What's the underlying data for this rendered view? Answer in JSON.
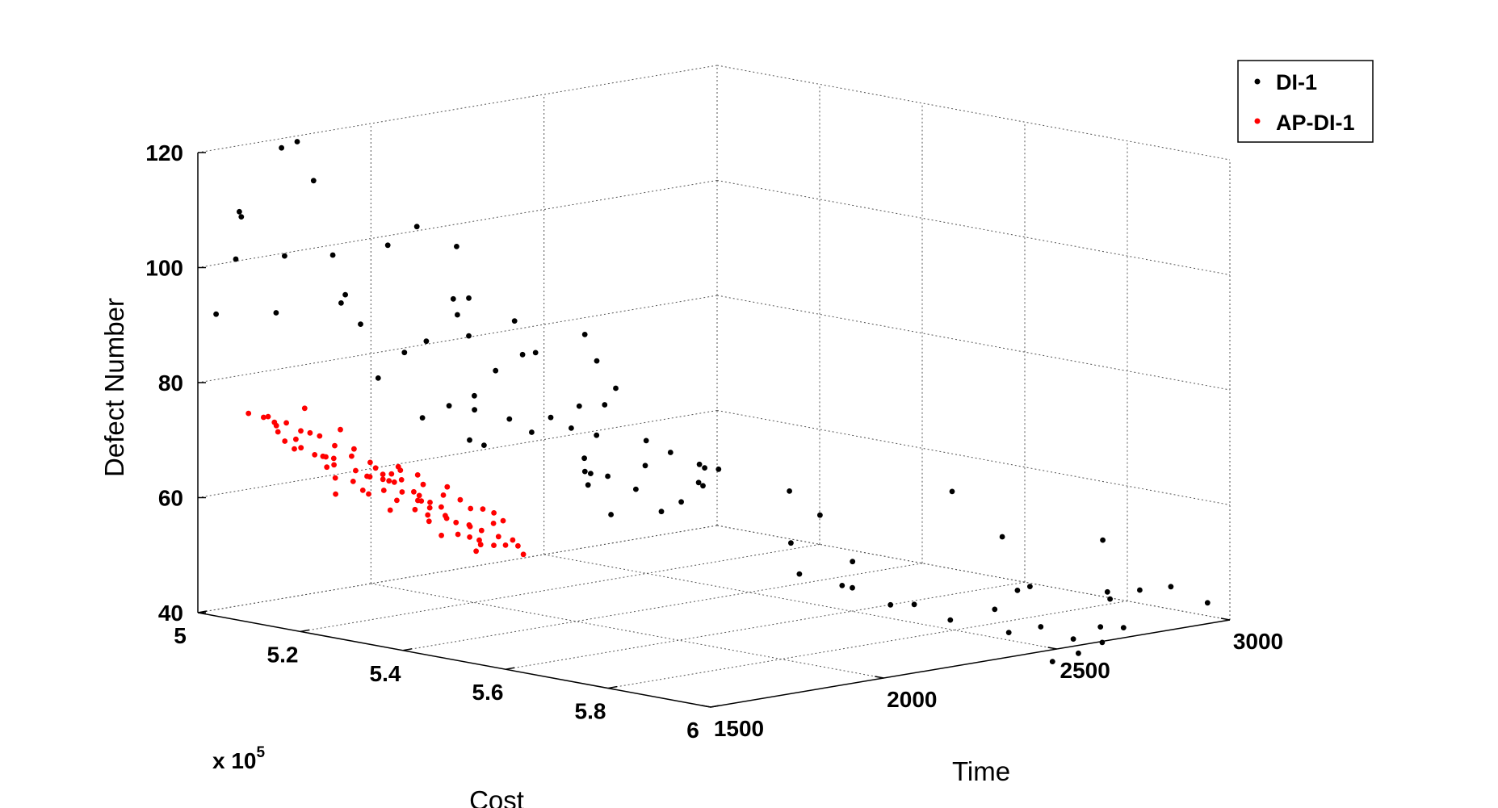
{
  "chart_data": {
    "type": "scatter",
    "projection": "3d",
    "xlabel": "Time",
    "ylabel": "Cost",
    "zlabel": "Defect Number",
    "cost_multiplier_label": "x 10",
    "cost_multiplier_exponent": "5",
    "xlim": [
      1500,
      3000
    ],
    "ylim": [
      5,
      6
    ],
    "zlim": [
      40,
      120
    ],
    "xticks": [
      "1500",
      "2000",
      "2500",
      "3000"
    ],
    "yticks": [
      "5",
      "5.2",
      "5.4",
      "5.6",
      "5.8",
      "6"
    ],
    "zticks": [
      "40",
      "60",
      "80",
      "100",
      "120"
    ],
    "grid": true,
    "legend_position": "top-right",
    "series": [
      {
        "name": "DI-1",
        "color": "#000000",
        "points": [
          [
            1523,
            5.02,
            92
          ],
          [
            1580,
            5.02,
            101
          ],
          [
            1581,
            5.03,
            108.5
          ],
          [
            1620,
            5.0,
            108.5
          ],
          [
            1712,
            5.02,
            119
          ],
          [
            1787,
            5.0,
            119
          ],
          [
            1775,
            5.04,
            113
          ],
          [
            1632,
            5.08,
            102
          ],
          [
            1578,
            5.1,
            93
          ],
          [
            1712,
            5.12,
            102
          ],
          [
            1782,
            5.18,
            104
          ],
          [
            1689,
            5.16,
            96
          ],
          [
            1662,
            5.17,
            95
          ],
          [
            1659,
            5.21,
            92
          ],
          [
            1760,
            5.27,
            89
          ],
          [
            1682,
            5.28,
            88
          ],
          [
            1621,
            5.27,
            84
          ],
          [
            1835,
            5.28,
            93
          ],
          [
            1868,
            5.28,
            89
          ],
          [
            1955,
            5.12,
            104.5
          ],
          [
            1942,
            5.23,
            94
          ],
          [
            2040,
            5.14,
            100.5
          ],
          [
            1912,
            5.22,
            94
          ],
          [
            1890,
            5.37,
            87
          ],
          [
            1812,
            5.37,
            85
          ],
          [
            1810,
            5.33,
            80
          ],
          [
            1737,
            5.33,
            79
          ],
          [
            1645,
            5.34,
            78
          ],
          [
            1766,
            5.36,
            78.5
          ],
          [
            1837,
            5.38,
            76.5
          ],
          [
            1722,
            5.38,
            74
          ],
          [
            1749,
            5.39,
            73
          ],
          [
            1857,
            5.41,
            74.5
          ],
          [
            1912,
            5.41,
            76.5
          ],
          [
            1927,
            5.44,
            75
          ],
          [
            1935,
            5.46,
            70
          ],
          [
            1922,
            5.47,
            68
          ],
          [
            1988,
            5.47,
            66.5
          ],
          [
            1820,
            5.55,
            70
          ],
          [
            1938,
            5.51,
            61
          ],
          [
            2055,
            5.38,
            89
          ],
          [
            2045,
            5.41,
            85
          ],
          [
            2085,
            5.42,
            80
          ],
          [
            2005,
            5.42,
            64
          ],
          [
            1995,
            5.52,
            65
          ],
          [
            2039,
            5.54,
            61
          ],
          [
            2178,
            5.16,
            86.5
          ],
          [
            2209,
            5.18,
            81
          ],
          [
            2216,
            5.31,
            74
          ],
          [
            2173,
            5.42,
            70
          ],
          [
            2261,
            5.23,
            72
          ],
          [
            2237,
            5.28,
            68
          ],
          [
            2184,
            5.46,
            68.5
          ],
          [
            2274,
            5.35,
            63.5
          ],
          [
            2308,
            5.47,
            64.5
          ],
          [
            2337,
            5.42,
            60.5
          ],
          [
            2416,
            5.37,
            62
          ],
          [
            2428,
            5.35,
            59
          ],
          [
            2460,
            5.33,
            61.5
          ],
          [
            2526,
            5.25,
            53
          ],
          [
            2424,
            5.53,
            60.5
          ],
          [
            2438,
            5.58,
            57
          ],
          [
            2354,
            5.58,
            53
          ],
          [
            2349,
            5.6,
            48
          ],
          [
            2413,
            5.64,
            46
          ],
          [
            2339,
            5.71,
            47.5
          ],
          [
            2295,
            5.74,
            53
          ],
          [
            2375,
            5.76,
            45
          ],
          [
            2414,
            5.78,
            45
          ],
          [
            2459,
            5.82,
            42.5
          ],
          [
            2539,
            5.88,
            40.5
          ],
          [
            2543,
            5.85,
            44
          ],
          [
            2587,
            5.91,
            41.5
          ],
          [
            2638,
            5.83,
            46
          ],
          [
            2689,
            5.82,
            46
          ],
          [
            2607,
            5.96,
            40
          ],
          [
            2700,
            5.95,
            41
          ],
          [
            2772,
            5.71,
            52
          ],
          [
            2879,
            5.54,
            56
          ],
          [
            2944,
            5.79,
            51
          ],
          [
            2965,
            5.98,
            43
          ],
          [
            2948,
            5.92,
            45
          ],
          [
            2873,
            5.91,
            45
          ],
          [
            2802,
            5.9,
            44
          ],
          [
            2809,
            5.89,
            45
          ],
          [
            2752,
            5.96,
            40.5
          ],
          [
            2646,
            5.99,
            39.5
          ],
          [
            2592,
            5.98,
            38
          ],
          [
            2532,
            5.97,
            37
          ]
        ]
      },
      {
        "name": "AP-DI-1",
        "color": "#ff0000",
        "points": [
          [
            1513,
            5.09,
            76
          ],
          [
            1527,
            5.11,
            75.5
          ],
          [
            1540,
            5.11,
            75.5
          ],
          [
            1549,
            5.12,
            74
          ],
          [
            1573,
            5.1,
            74
          ],
          [
            1524,
            5.14,
            73.5
          ],
          [
            1590,
            5.14,
            73
          ],
          [
            1561,
            5.15,
            72
          ],
          [
            1527,
            5.17,
            71
          ],
          [
            1556,
            5.19,
            70
          ],
          [
            1580,
            5.19,
            69.5
          ],
          [
            1603,
            5.18,
            69
          ],
          [
            1626,
            5.18,
            68.5
          ],
          [
            1597,
            5.2,
            68
          ],
          [
            1630,
            5.22,
            67
          ],
          [
            1648,
            5.23,
            66
          ],
          [
            1671,
            5.22,
            65.5
          ],
          [
            1694,
            5.23,
            65
          ],
          [
            1712,
            5.24,
            64.5
          ],
          [
            1652,
            5.26,
            64
          ],
          [
            1690,
            5.27,
            63.5
          ],
          [
            1660,
            5.28,
            62.5
          ],
          [
            1716,
            5.29,
            62
          ],
          [
            1741,
            5.29,
            61.5
          ],
          [
            1683,
            5.3,
            61
          ],
          [
            1705,
            5.31,
            60
          ],
          [
            1730,
            5.33,
            59.5
          ],
          [
            1757,
            5.33,
            58.5
          ],
          [
            1780,
            5.34,
            58
          ],
          [
            1801,
            5.35,
            57
          ],
          [
            1765,
            5.37,
            56
          ],
          [
            1811,
            5.39,
            55
          ],
          [
            1847,
            5.39,
            54.5
          ],
          [
            1833,
            5.41,
            53.5
          ],
          [
            1776,
            5.4,
            57
          ],
          [
            1819,
            5.38,
            59
          ],
          [
            1735,
            5.27,
            66
          ],
          [
            1700,
            5.26,
            67
          ],
          [
            1640,
            5.21,
            70.5
          ],
          [
            1600,
            5.17,
            72.5
          ],
          [
            1660,
            5.17,
            73
          ],
          [
            1750,
            5.31,
            63
          ],
          [
            1790,
            5.36,
            61
          ],
          [
            1733,
            5.35,
            57
          ],
          [
            1679,
            5.27,
            68
          ],
          [
            1616,
            5.13,
            76.5
          ],
          [
            1709,
            5.28,
            63.5
          ],
          [
            1667,
            5.26,
            65.5
          ],
          [
            1691,
            5.3,
            62.5
          ],
          [
            1744,
            5.31,
            61
          ],
          [
            1799,
            5.33,
            60.5
          ],
          [
            1754,
            5.38,
            55.5
          ],
          [
            1817,
            5.4,
            56
          ],
          [
            1784,
            5.32,
            62
          ],
          [
            1806,
            5.37,
            58.5
          ],
          [
            1621,
            5.24,
            64
          ],
          [
            1648,
            5.2,
            69
          ],
          [
            1718,
            5.25,
            65
          ],
          [
            1586,
            5.21,
            66
          ],
          [
            1608,
            5.23,
            65.5
          ],
          [
            1572,
            5.22,
            63.5
          ],
          [
            1546,
            5.17,
            71
          ],
          [
            1529,
            5.15,
            72
          ],
          [
            1768,
            5.35,
            58
          ],
          [
            1696,
            5.32,
            61.5
          ],
          [
            1726,
            5.33,
            60
          ],
          [
            1664,
            5.25,
            66.5
          ],
          [
            1641,
            5.28,
            61
          ],
          [
            1776,
            5.3,
            64
          ],
          [
            1822,
            5.36,
            60
          ],
          [
            1736,
            5.28,
            64.5
          ],
          [
            1658,
            5.24,
            67.5
          ],
          [
            1614,
            5.19,
            71
          ],
          [
            1587,
            5.16,
            73
          ],
          [
            1563,
            5.13,
            74.5
          ],
          [
            1700,
            5.34,
            57
          ],
          [
            1752,
            5.36,
            56.5
          ],
          [
            1792,
            5.38,
            55
          ],
          [
            1710,
            5.29,
            63
          ],
          [
            1679,
            5.33,
            59.5
          ],
          [
            1741,
            5.38,
            54.5
          ],
          [
            1672,
            5.22,
            68
          ],
          [
            1623,
            5.25,
            63.5
          ],
          [
            1591,
            5.19,
            67.5
          ],
          [
            1704,
            5.24,
            66
          ]
        ]
      }
    ]
  }
}
